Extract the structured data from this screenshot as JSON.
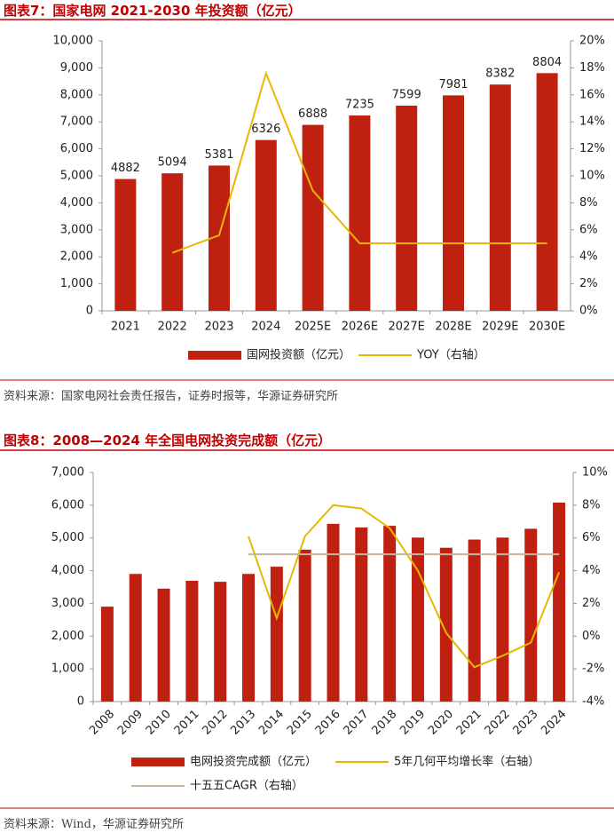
{
  "chart_data": [
    {
      "type": "bar",
      "title": "图表7：国家电网 2021-2030 年投资额（亿元）",
      "source": "资料来源：国家电网社会责任报告，证券时报等，华源证券研究所",
      "categories": [
        "2021",
        "2022",
        "2023",
        "2024",
        "2025E",
        "2026E",
        "2027E",
        "2028E",
        "2029E",
        "2030E"
      ],
      "series": [
        {
          "name": "国网投资额（亿元）",
          "type": "bar",
          "color": "#c0200f",
          "values": [
            4882,
            5094,
            5381,
            6326,
            6888,
            7235,
            7599,
            7981,
            8382,
            8804
          ]
        },
        {
          "name": "YOY（右轴）",
          "type": "line",
          "axis": "y2",
          "color": "#e6b800",
          "values": [
            null,
            4.3,
            5.6,
            17.6,
            8.9,
            5.0,
            5.0,
            5.0,
            5.0,
            5.0
          ]
        }
      ],
      "data_labels": true,
      "ylim": [
        0,
        10000
      ],
      "yticks": [
        0,
        {
          "value": 1000,
          "label": "1,000"
        },
        {
          "value": 2000,
          "label": "2,000"
        },
        {
          "value": 3000,
          "label": "3,000"
        },
        {
          "value": 4000,
          "label": "4,000"
        },
        {
          "value": 5000,
          "label": "5,000"
        },
        {
          "value": 6000,
          "label": "6,000"
        },
        {
          "value": 7000,
          "label": "7,000"
        },
        {
          "value": 8000,
          "label": "8,000"
        },
        {
          "value": 9000,
          "label": "9,000"
        },
        {
          "value": 10000,
          "label": "10,000"
        }
      ],
      "y2lim": [
        0,
        20
      ],
      "y2ticks": [
        {
          "value": 0,
          "label": "0%"
        },
        {
          "value": 2,
          "label": "2%"
        },
        {
          "value": 4,
          "label": "4%"
        },
        {
          "value": 6,
          "label": "6%"
        },
        {
          "value": 8,
          "label": "8%"
        },
        {
          "value": 10,
          "label": "10%"
        },
        {
          "value": 12,
          "label": "12%"
        },
        {
          "value": 14,
          "label": "14%"
        },
        {
          "value": 16,
          "label": "16%"
        },
        {
          "value": 18,
          "label": "18%"
        },
        {
          "value": 20,
          "label": "20%"
        }
      ]
    },
    {
      "type": "bar",
      "title": "图表8：2008—2024 年全国电网投资完成额（亿元）",
      "source": "资料来源：Wind，华源证券研究所",
      "categories": [
        "2008",
        "2009",
        "2010",
        "2011",
        "2012",
        "2013",
        "2014",
        "2015",
        "2016",
        "2017",
        "2018",
        "2019",
        "2020",
        "2021",
        "2022",
        "2023",
        "2024"
      ],
      "series": [
        {
          "name": "电网投资完成额（亿元）",
          "type": "bar",
          "color": "#c0200f",
          "values": [
            2900,
            3900,
            3450,
            3690,
            3660,
            3900,
            4120,
            4640,
            5430,
            5320,
            5370,
            5010,
            4700,
            4950,
            5010,
            5280,
            6080
          ]
        },
        {
          "name": "5年几何平均增长率（右轴）",
          "type": "line",
          "axis": "y2",
          "color": "#e6b800",
          "values": [
            null,
            null,
            null,
            null,
            null,
            6.1,
            1.1,
            6.1,
            8.0,
            7.8,
            6.6,
            4.0,
            0.2,
            -1.9,
            -1.2,
            -0.4,
            3.9
          ]
        },
        {
          "name": "十五五CAGR（右轴）",
          "type": "line",
          "axis": "y2",
          "color": "#c8b49c",
          "values": [
            null,
            null,
            null,
            null,
            null,
            5.0,
            5.0,
            5.0,
            5.0,
            5.0,
            5.0,
            5.0,
            5.0,
            5.0,
            5.0,
            5.0,
            5.0
          ]
        }
      ],
      "data_labels": false,
      "ylim": [
        0,
        7000
      ],
      "yticks": [
        0,
        {
          "value": 1000,
          "label": "1,000"
        },
        {
          "value": 2000,
          "label": "2,000"
        },
        {
          "value": 3000,
          "label": "3,000"
        },
        {
          "value": 4000,
          "label": "4,000"
        },
        {
          "value": 5000,
          "label": "5,000"
        },
        {
          "value": 6000,
          "label": "6,000"
        },
        {
          "value": 7000,
          "label": "7,000"
        }
      ],
      "y2lim": [
        -4,
        10
      ],
      "y2ticks": [
        {
          "value": -4,
          "label": "-4%"
        },
        {
          "value": -2,
          "label": "-2%"
        },
        {
          "value": 0,
          "label": "0%"
        },
        {
          "value": 2,
          "label": "2%"
        },
        {
          "value": 4,
          "label": "4%"
        },
        {
          "value": 6,
          "label": "6%"
        },
        {
          "value": 8,
          "label": "8%"
        },
        {
          "value": 10,
          "label": "10%"
        }
      ]
    }
  ]
}
